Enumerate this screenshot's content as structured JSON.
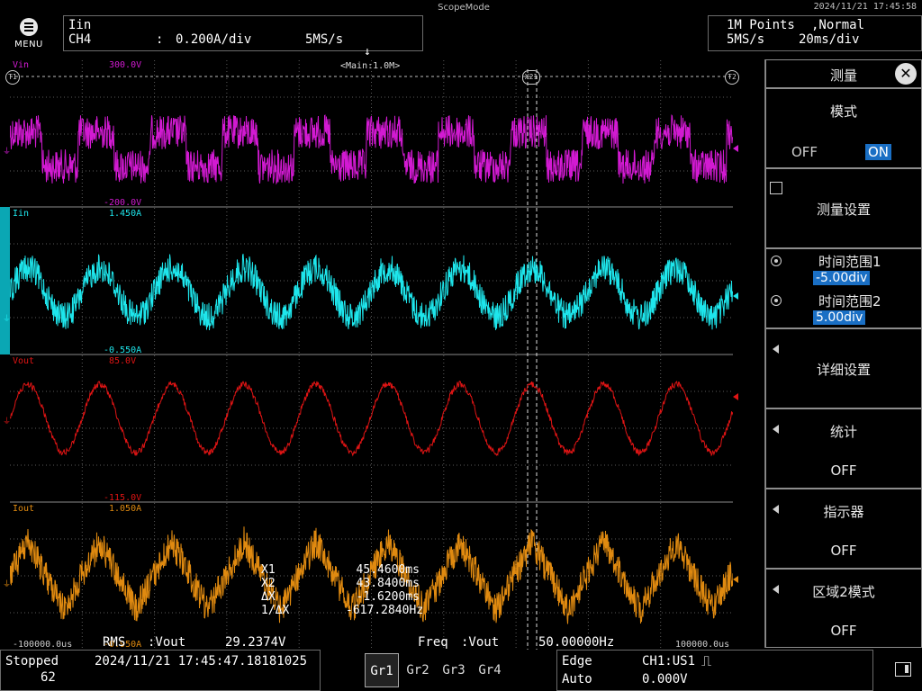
{
  "app": {
    "title": "ScopeMode",
    "datetime": "2024/11/21 17:45:58",
    "menu_label": "MENU"
  },
  "channel_info": {
    "name": "Iin",
    "channel": "CH4",
    "colon": ":",
    "scale": "0.200A/div",
    "rate": "5MS/s"
  },
  "acq_info": {
    "points": "1M Points",
    "mode": ",Normal",
    "rate": "5MS/s",
    "timebase": "20ms/div"
  },
  "screen": {
    "trigger_marker": "T",
    "main_label": "<Main:1.0M>",
    "t1_label": "T1",
    "t2_label": "T2",
    "x21_label": "X21",
    "time_left": "-100000.0us",
    "time_right": "100000.0us",
    "colors": {
      "vin": "#d21ad2",
      "iin": "#1ee6ec",
      "vout": "#e01414",
      "iout": "#e08a10"
    },
    "channels": [
      {
        "name": "Vin",
        "top_label": "300.0V",
        "bottom_label": "-200.0V"
      },
      {
        "name": "Iin",
        "top_label": "1.450A",
        "bottom_label": "-0.550A"
      },
      {
        "name": "Vout",
        "top_label": "85.0V",
        "bottom_label": "-115.0V"
      },
      {
        "name": "Iout",
        "top_label": "1.050A",
        "bottom_label": "-0.950A"
      }
    ],
    "cursor_readout": [
      {
        "label": "X1",
        "value": "45.4600ms"
      },
      {
        "label": "X2",
        "value": "43.8400ms"
      },
      {
        "label": "ΔX",
        "value": "-1.6200ms"
      },
      {
        "label": "1/ΔX",
        "value": "-617.2840Hz"
      }
    ],
    "measurements": [
      {
        "label": "RMS",
        "source": ":Vout",
        "value": "29.2374V"
      },
      {
        "label": "Freq",
        "source": ":Vout",
        "value": "50.00000Hz"
      }
    ]
  },
  "panel": {
    "title": "测量",
    "mode_label": "模式",
    "mode_off": "OFF",
    "mode_on": "ON",
    "settings_label": "测量设置",
    "range1_label": "时间范围1",
    "range1_value": "-5.00div",
    "range2_label": "时间范围2",
    "range2_value": "5.00div",
    "detail_label": "详细设置",
    "stats_label": "统计",
    "stats_value": "OFF",
    "indicator_label": "指示器",
    "indicator_value": "OFF",
    "zone2_label": "区域2模式",
    "zone2_value": "OFF"
  },
  "status": {
    "state": "Stopped",
    "count": "62",
    "acq_time": "2024/11/21 17:45:47.18181025",
    "groups": [
      "Gr1",
      "Gr2",
      "Gr3",
      "Gr4"
    ],
    "trigger_type": "Edge",
    "trigger_source": "CH1:US1",
    "trigger_mode": "Auto",
    "trigger_level": "0.000V"
  }
}
